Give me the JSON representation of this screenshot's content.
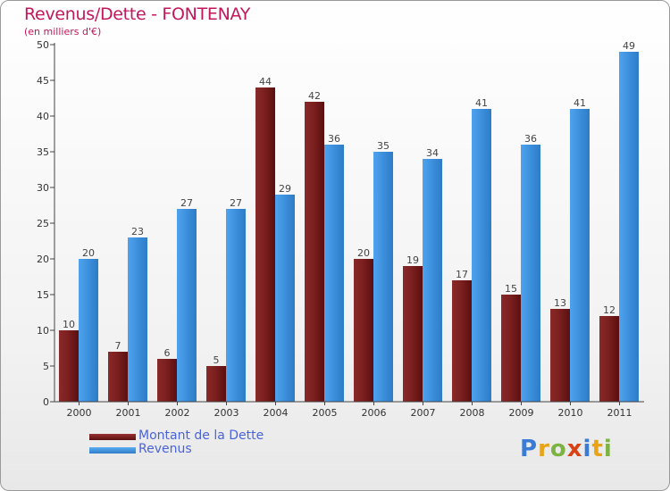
{
  "title": "Revenus/Dette - FONTENAY",
  "subtitle": "(en milliers d'€)",
  "colors": {
    "title": "#c2185b",
    "dette": "#7a1e1e",
    "revenus": "#3c8fdc",
    "legend_text": "#4a63d8"
  },
  "legend": [
    {
      "label": "Montant de la Dette",
      "series": "dette"
    },
    {
      "label": "Revenus",
      "series": "revenus"
    }
  ],
  "logo": {
    "letters": [
      "P",
      "r",
      "o",
      "x",
      "i",
      "t",
      "i"
    ]
  },
  "chart_data": {
    "type": "bar",
    "title": "Revenus/Dette - FONTENAY",
    "ylabel": "(en milliers d'€)",
    "xlabel": "",
    "categories": [
      "2000",
      "2001",
      "2002",
      "2003",
      "2004",
      "2005",
      "2006",
      "2007",
      "2008",
      "2009",
      "2010",
      "2011"
    ],
    "series": [
      {
        "name": "Montant de la Dette",
        "values": [
          10,
          7,
          6,
          5,
          44,
          42,
          20,
          19,
          17,
          15,
          13,
          12
        ]
      },
      {
        "name": "Revenus",
        "values": [
          20,
          23,
          27,
          27,
          29,
          36,
          35,
          34,
          41,
          36,
          41,
          49
        ]
      }
    ],
    "ylim": [
      0,
      50
    ],
    "yticks": [
      0,
      5,
      10,
      15,
      20,
      25,
      30,
      35,
      40,
      45,
      50
    ],
    "grid": false,
    "legend_position": "bottom-left"
  }
}
